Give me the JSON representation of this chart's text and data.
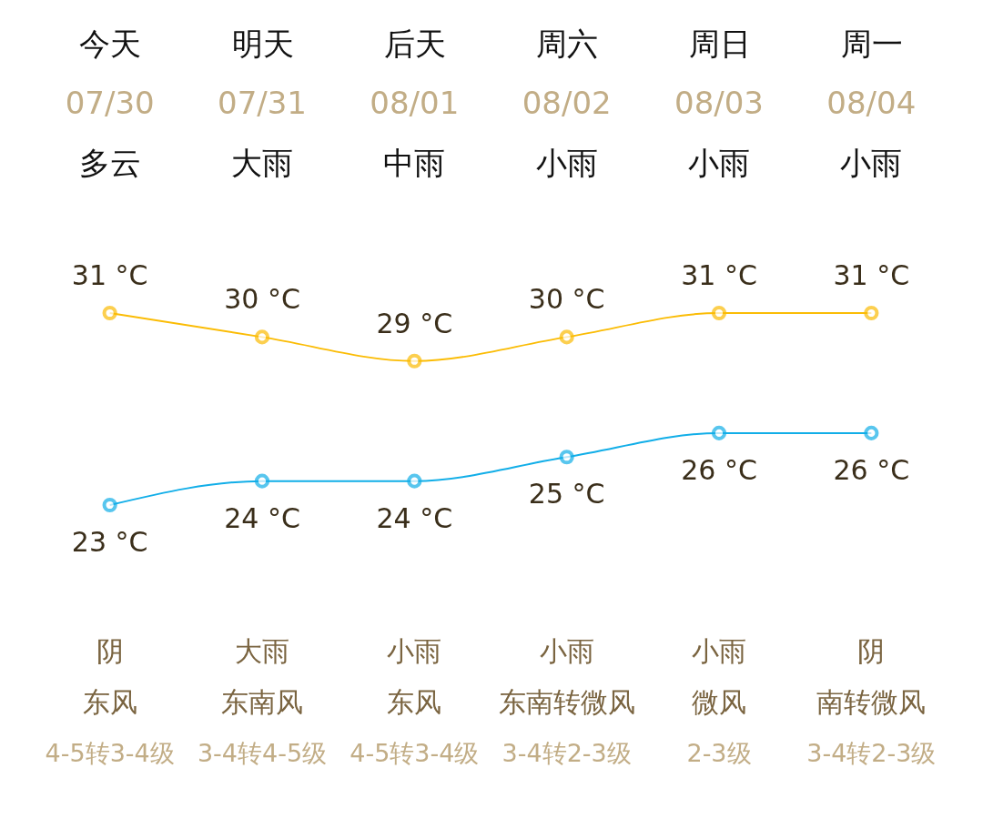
{
  "chart_data": {
    "type": "line",
    "categories": [
      "今天",
      "明天",
      "后天",
      "周六",
      "周日",
      "周一"
    ],
    "marker": "circle",
    "series": [
      {
        "color": "#fbbc05",
        "values": [
          31,
          30,
          29,
          30,
          31,
          31
        ],
        "value_labels": [
          "31 °C",
          "30 °C",
          "29 °C",
          "30 °C",
          "31 °C",
          "31 °C"
        ]
      },
      {
        "color": "#12aee8",
        "values": [
          23,
          24,
          24,
          25,
          26,
          26
        ],
        "value_labels": [
          "23 °C",
          "24 °C",
          "24 °C",
          "25 °C",
          "26 °C",
          "26 °C"
        ]
      }
    ],
    "annotations": [
      "07/30",
      "07/31",
      "08/01",
      "08/02",
      "08/03",
      "08/04",
      "多云",
      "大雨",
      "中雨",
      "小雨",
      "小雨",
      "小雨",
      "阴",
      "大雨",
      "小雨",
      "小雨",
      "小雨",
      "阴",
      "东风",
      "东南风",
      "东风",
      "东南转微风",
      "微风",
      "南转微风",
      "4-5转3-4级",
      "3-4转4-5级",
      "4-5转3-4级",
      "3-4转2-3级",
      "2-3级",
      "3-4转2-3级"
    ]
  }
}
